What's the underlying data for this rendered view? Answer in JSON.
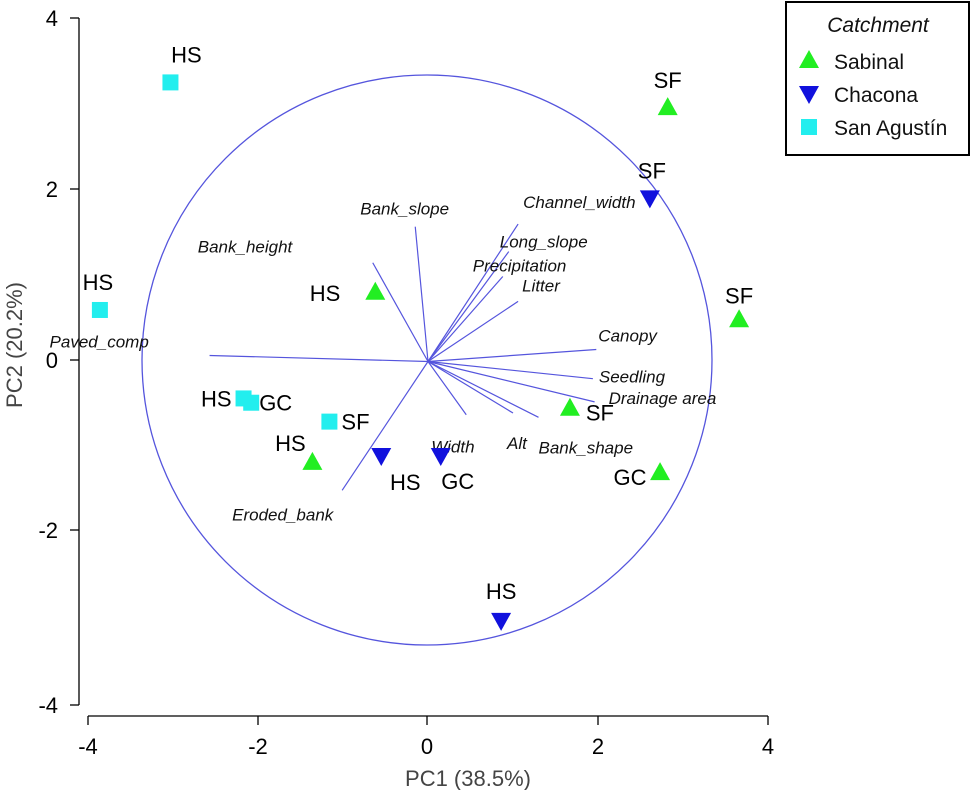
{
  "chart_data": {
    "type": "scatter",
    "xlabel": "PC1 (38.5%)",
    "ylabel": "PC2 (20.2%)",
    "xlim": [
      -4,
      4
    ],
    "ylim": [
      -4,
      4
    ],
    "xticks": [
      "-4",
      "-2",
      "0",
      "2",
      "4"
    ],
    "yticks": [
      "4",
      "2",
      "0",
      "-2",
      "-4"
    ],
    "correlation_circle_radius": 3.35,
    "legend": {
      "title": "Catchment",
      "position": "top-right",
      "entries": [
        {
          "name": "Sabinal",
          "marker": "triangle-up",
          "color": "#22ee22"
        },
        {
          "name": "Chacona",
          "marker": "triangle-down",
          "color": "#1111dd"
        },
        {
          "name": "San Agustín",
          "marker": "square",
          "color": "#22eeee"
        }
      ]
    },
    "colors": {
      "circle": "#5555dd",
      "vectors": "#5555dd",
      "axes": "#000000"
    },
    "series": [
      {
        "name": "Sabinal",
        "marker": "triangle-up",
        "color": "#22ee22",
        "points": [
          {
            "x": 2.82,
            "y": 2.95,
            "label": "SF"
          },
          {
            "x": 3.66,
            "y": 0.48,
            "label": "SF"
          },
          {
            "x": 1.67,
            "y": -0.55,
            "label": "SF"
          },
          {
            "x": 2.73,
            "y": -1.3,
            "label": "GC"
          },
          {
            "x": -0.62,
            "y": 0.8,
            "label": "HS"
          },
          {
            "x": -1.36,
            "y": -1.18,
            "label": "HS"
          }
        ]
      },
      {
        "name": "Chacona",
        "marker": "triangle-down",
        "color": "#1111dd",
        "points": [
          {
            "x": 2.61,
            "y": 1.9,
            "label": "SF"
          },
          {
            "x": -0.55,
            "y": -1.1,
            "label": "HS"
          },
          {
            "x": 0.15,
            "y": -1.1,
            "label": "GC"
          },
          {
            "x": 0.86,
            "y": -3.02,
            "label": "HS"
          }
        ]
      },
      {
        "name": "San Agustín",
        "marker": "square",
        "color": "#22eeee",
        "points": [
          {
            "x": -3.03,
            "y": 3.25,
            "label": "HS"
          },
          {
            "x": -3.86,
            "y": 0.6,
            "label": "HS"
          },
          {
            "x": -2.17,
            "y": -0.43,
            "label": "HS"
          },
          {
            "x": -2.08,
            "y": -0.48,
            "label": "GC"
          },
          {
            "x": -1.16,
            "y": -0.7,
            "label": "SF"
          }
        ]
      }
    ],
    "vectors": [
      {
        "name": "Bank_slope",
        "x": -0.15,
        "y": 1.57
      },
      {
        "name": "Bank_height",
        "x": -0.65,
        "y": 1.15
      },
      {
        "name": "Channel_width",
        "x": 1.06,
        "y": 1.6
      },
      {
        "name": "Long_slope",
        "x": 0.95,
        "y": 1.28
      },
      {
        "name": "Precipitation",
        "x": 0.88,
        "y": 0.99
      },
      {
        "name": "Litter",
        "x": 1.06,
        "y": 0.7
      },
      {
        "name": "Paved_comp",
        "x": -2.57,
        "y": 0.07
      },
      {
        "name": "Canopy",
        "x": 1.98,
        "y": 0.14
      },
      {
        "name": "Seedling",
        "x": 1.94,
        "y": -0.2
      },
      {
        "name": "Drainage area",
        "x": 1.96,
        "y": -0.47
      },
      {
        "name": "Bank_shape",
        "x": 1.3,
        "y": -0.65
      },
      {
        "name": "Alt",
        "x": 1.0,
        "y": -0.6
      },
      {
        "name": "Width",
        "x": 0.45,
        "y": -0.62
      },
      {
        "name": "Eroded_bank",
        "x": -1.01,
        "y": -1.5
      }
    ]
  }
}
